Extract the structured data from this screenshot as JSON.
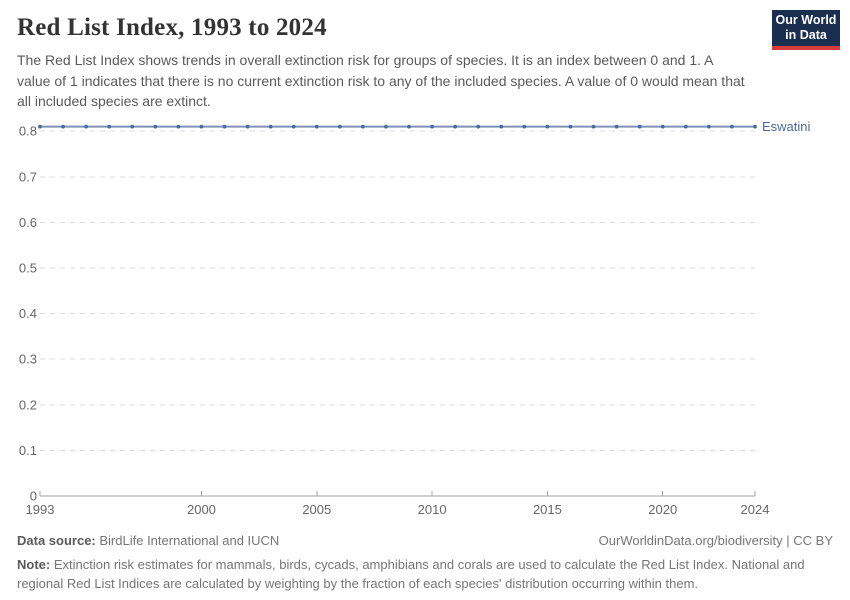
{
  "header": {
    "title": "Red List Index, 1993 to 2024",
    "subtitle": "The Red List Index shows trends in overall extinction risk for groups of species. It is an index between 0 and 1. A value of 1 indicates that there is no current extinction risk to any of the included species. A value of 0 would mean that all included species are extinct.",
    "logo": {
      "line1": "Our World",
      "line2": "in Data",
      "bg_color": "#1a2e4f",
      "stripe_color": "#d83c3c"
    }
  },
  "chart_data": {
    "type": "line",
    "title": "Red List Index, 1993 to 2024",
    "x": [
      1993,
      1994,
      1995,
      1996,
      1997,
      1998,
      1999,
      2000,
      2001,
      2002,
      2003,
      2004,
      2005,
      2006,
      2007,
      2008,
      2009,
      2010,
      2011,
      2012,
      2013,
      2014,
      2015,
      2016,
      2017,
      2018,
      2019,
      2020,
      2021,
      2022,
      2023,
      2024
    ],
    "series": [
      {
        "name": "Eswatini",
        "color": "#4c6a9c",
        "values": [
          0.81,
          0.81,
          0.81,
          0.81,
          0.81,
          0.81,
          0.81,
          0.81,
          0.81,
          0.81,
          0.81,
          0.81,
          0.81,
          0.81,
          0.81,
          0.81,
          0.81,
          0.81,
          0.81,
          0.81,
          0.81,
          0.81,
          0.81,
          0.81,
          0.81,
          0.81,
          0.81,
          0.81,
          0.81,
          0.81,
          0.81,
          0.81
        ]
      }
    ],
    "xlabel": "",
    "ylabel": "",
    "ylim": [
      0,
      0.85
    ],
    "yticks": [
      0,
      0.1,
      0.2,
      0.3,
      0.4,
      0.5,
      0.6,
      0.7,
      0.8
    ],
    "xticks": [
      1993,
      2000,
      2005,
      2010,
      2015,
      2020,
      2024
    ],
    "grid": "horizontal-dashed",
    "legend_position": "end-of-line-label",
    "colors": {
      "grid": "#dcdcdc",
      "axis": "#a6a6a6",
      "tick_label": "#666666"
    }
  },
  "footer": {
    "data_source_label": "Data source:",
    "data_source": "BirdLife International and IUCN",
    "attribution": "OurWorldinData.org/biodiversity | CC BY",
    "note_label": "Note:",
    "note": "Extinction risk estimates for mammals, birds, cycads, amphibians and corals are used to calculate the Red List Index. National and regional Red List Indices are calculated by weighting by the fraction of each species' distribution occurring within them."
  }
}
